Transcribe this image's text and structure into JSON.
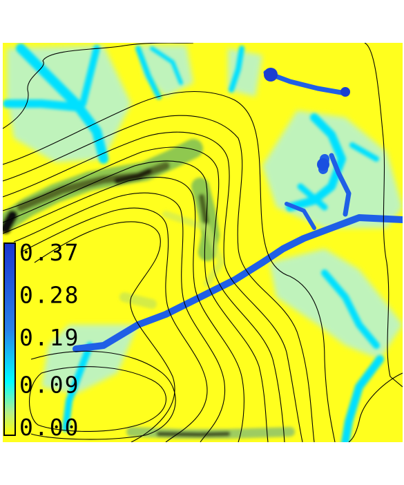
{
  "chart_data": {
    "type": "heatmap",
    "title": "",
    "xlabel": "",
    "ylabel": "",
    "colorbar": {
      "ticks": [
        0.37,
        0.28,
        0.19,
        0.09,
        0.0
      ],
      "tick_labels": [
        "0.37",
        "0.28",
        "0.19",
        "0.09",
        "0.00"
      ],
      "range": [
        0.0,
        0.4
      ],
      "colors": {
        "min": "#ffff00",
        "low": "#00ffff",
        "high": "#1f3fd0",
        "bar_border": "#000000"
      }
    },
    "contours": {
      "color": "#000000",
      "count": 12
    },
    "grid": false,
    "legend": "none"
  }
}
